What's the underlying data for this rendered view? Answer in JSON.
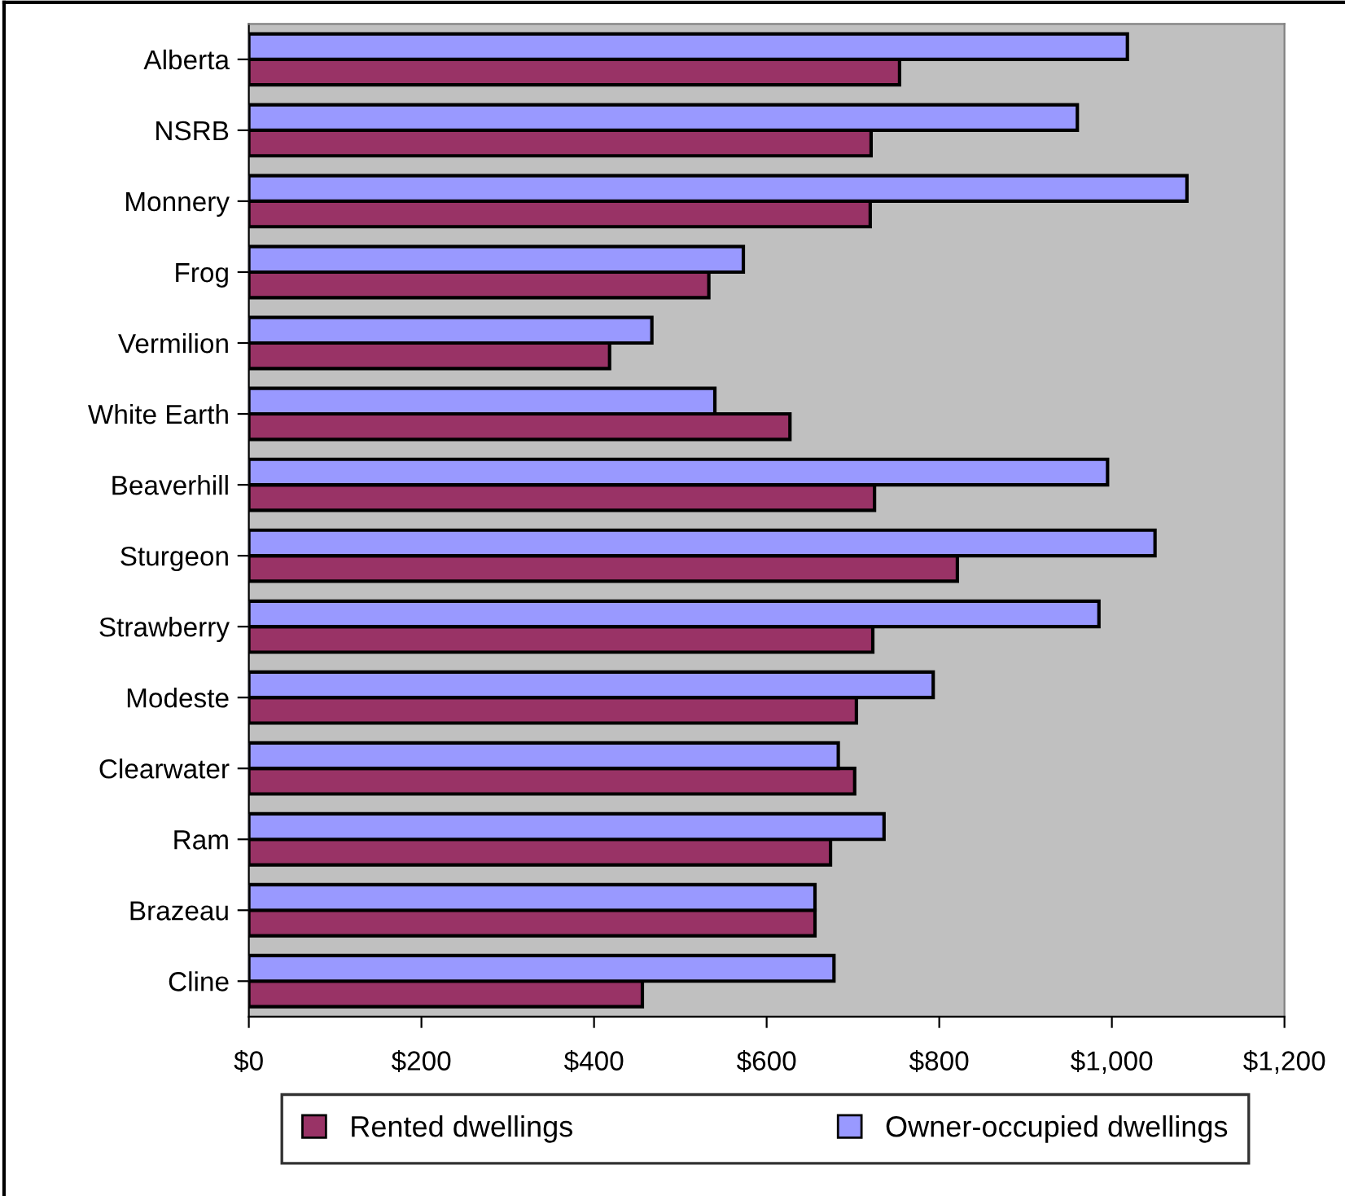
{
  "chart_data": {
    "type": "bar",
    "orientation": "horizontal",
    "categories": [
      "Alberta",
      "NSRB",
      "Monnery",
      "Frog",
      "Vermilion",
      "White Earth",
      "Beaverhill",
      "Sturgeon",
      "Strawberry",
      "Modeste",
      "Clearwater",
      "Ram",
      "Brazeau",
      "Cline"
    ],
    "series": [
      {
        "name": "Rented dwellings",
        "color": "#993366",
        "values": [
          754,
          721,
          720,
          533,
          418,
          627,
          725,
          821,
          723,
          704,
          702,
          674,
          656,
          456
        ]
      },
      {
        "name": "Owner-occupied dwellings",
        "color": "#9999ff",
        "values": [
          1018,
          960,
          1087,
          573,
          467,
          540,
          995,
          1050,
          985,
          793,
          683,
          736,
          656,
          678
        ]
      }
    ],
    "xlim": [
      0,
      1200
    ],
    "xticks": [
      {
        "value": 0,
        "label": "$0"
      },
      {
        "value": 200,
        "label": "$200"
      },
      {
        "value": 400,
        "label": "$400"
      },
      {
        "value": 600,
        "label": "$600"
      },
      {
        "value": 800,
        "label": "$800"
      },
      {
        "value": 1000,
        "label": "$1,000"
      },
      {
        "value": 1200,
        "label": "$1,200"
      }
    ],
    "grid": false,
    "legend": "bottom"
  }
}
